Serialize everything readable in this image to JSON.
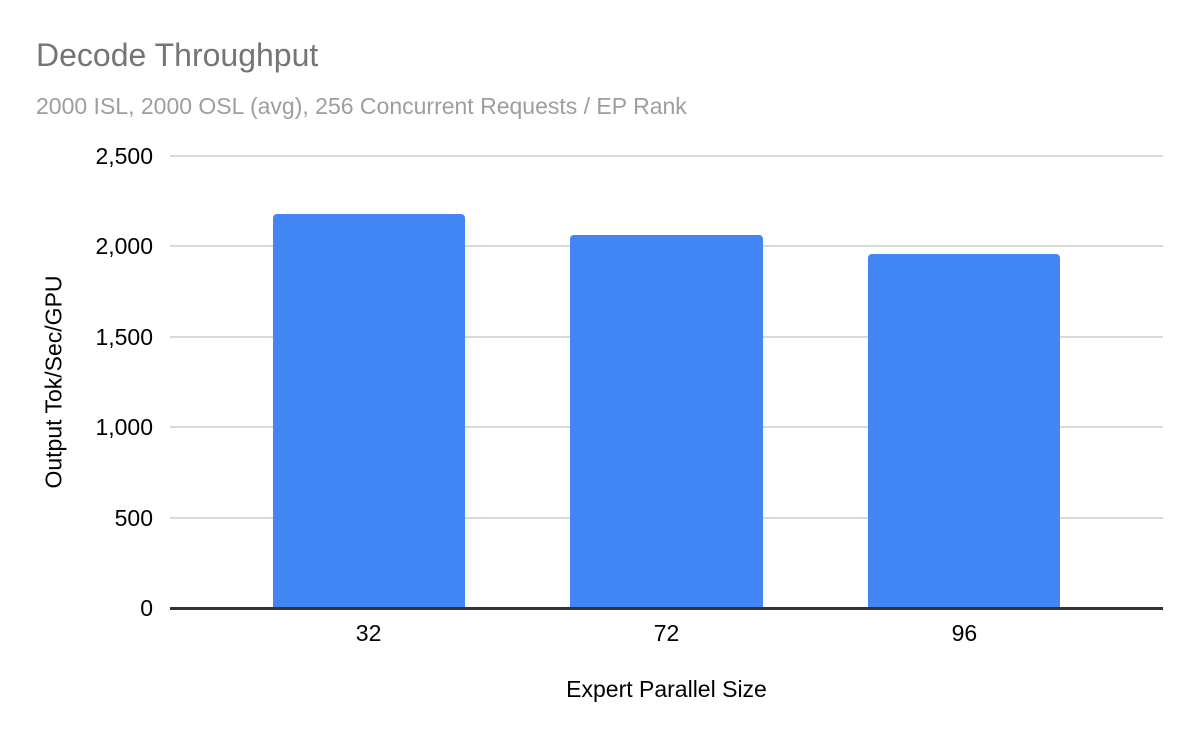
{
  "chart_data": {
    "type": "bar",
    "title": "Decode Throughput",
    "subtitle": "2000 ISL, 2000 OSL (avg), 256 Concurrent Requests / EP Rank",
    "categories": [
      "32",
      "72",
      "96"
    ],
    "values": [
      2180,
      2065,
      1960
    ],
    "xlabel": "Expert Parallel Size",
    "ylabel": "Output Tok/Sec/GPU",
    "ylim": [
      0,
      2500
    ],
    "y_ticks": [
      {
        "value": 0,
        "label": "0"
      },
      {
        "value": 500,
        "label": "500"
      },
      {
        "value": 1000,
        "label": "1,000"
      },
      {
        "value": 1500,
        "label": "1,500"
      },
      {
        "value": 2000,
        "label": "2,000"
      },
      {
        "value": 2500,
        "label": "2,500"
      }
    ],
    "grid": true,
    "legend": "none",
    "bar_color": "#4285F4",
    "gridline_color": "#d9d9d9",
    "baseline_color": "#333333",
    "title_color": "#757575",
    "subtitle_color": "#9e9e9e"
  }
}
